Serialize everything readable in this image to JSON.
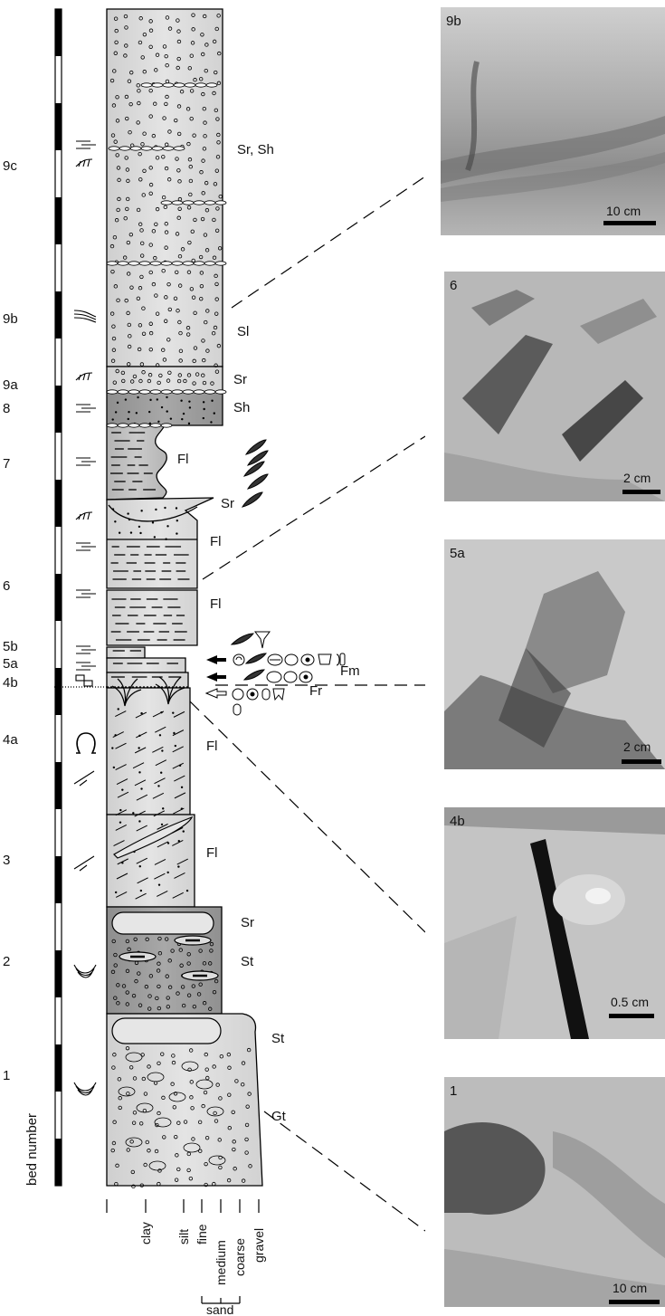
{
  "bed_numbers": [
    "9c",
    "9b",
    "9a",
    "8",
    "7",
    "6",
    "5b",
    "5a",
    "4b",
    "4a",
    "3",
    "2",
    "1"
  ],
  "y_axis_label": "bed number",
  "facies_labels": [
    "Sr, Sh",
    "Sl",
    "Sr",
    "Sh",
    "Fl",
    "Sr",
    "Fl",
    "Fl",
    "Fm",
    "Fr",
    "Fl",
    "Fl",
    "Sr",
    "St",
    "St",
    "Gt"
  ],
  "grain_size_labels": [
    "clay",
    "silt",
    "fine",
    "medium",
    "coarse",
    "gravel"
  ],
  "sand_group_label": "sand",
  "photos": [
    {
      "label": "9b",
      "scale": "10 cm"
    },
    {
      "label": "6",
      "scale": "2 cm"
    },
    {
      "label": "5a",
      "scale": "2 cm"
    },
    {
      "label": "4b",
      "scale": "0.5 cm"
    },
    {
      "label": "1",
      "scale": "10 cm"
    }
  ],
  "colors": {
    "light_fill": "#dcdcdc",
    "dark_fill": "#9a9a9a",
    "mid_fill": "#bfbfbf",
    "ink": "#111111"
  }
}
